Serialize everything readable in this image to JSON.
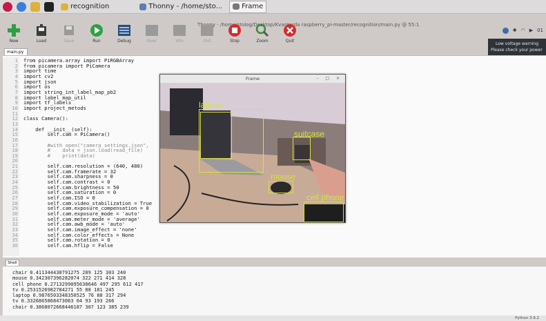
{
  "taskbar": {
    "items": [
      {
        "label": "recognition"
      },
      {
        "label": "Thonny - /home/sto..."
      },
      {
        "label": "Frame"
      }
    ]
  },
  "window": {
    "title": "Thonny - /home/stolog/Desktop/Kvantorda raspberry_pi-master/recognition/main.py @ 55:1"
  },
  "toolbar": {
    "buttons": [
      {
        "label": "New",
        "icon": "new-icon",
        "color": "#2ea043"
      },
      {
        "label": "Load",
        "icon": "load-icon",
        "color": "#333333"
      },
      {
        "label": "Save",
        "icon": "save-icon",
        "color": "#8a8a8a"
      },
      {
        "label": "Run",
        "icon": "run-icon",
        "color": "#2ea043"
      },
      {
        "label": "Debug",
        "icon": "debug-icon",
        "color": "#2b4a7a"
      },
      {
        "label": "Over",
        "icon": "step-over-icon",
        "color": "#8a8a8a"
      },
      {
        "label": "Into",
        "icon": "step-into-icon",
        "color": "#8a8a8a"
      },
      {
        "label": "Out",
        "icon": "step-out-icon",
        "color": "#8a8a8a"
      },
      {
        "label": "Stop",
        "icon": "stop-icon",
        "color": "#d92b2b"
      },
      {
        "label": "Zoom",
        "icon": "zoom-icon",
        "color": "#3a8a3a"
      },
      {
        "label": "Quit",
        "icon": "quit-icon",
        "color": "#d92b2b"
      }
    ]
  },
  "tray": {
    "clock": "01"
  },
  "warning": {
    "line1": "Low voltage warning",
    "line2": "Please check your power"
  },
  "editor": {
    "tab_label": "main.py",
    "lines": [
      {
        "n": "1",
        "text": "from picamera.array import PiRGBArray"
      },
      {
        "n": "2",
        "text": "from picamera import PiCamera"
      },
      {
        "n": "3",
        "text": "import time"
      },
      {
        "n": "4",
        "text": "import cv2"
      },
      {
        "n": "5",
        "text": "import json"
      },
      {
        "n": "6",
        "text": "import os"
      },
      {
        "n": "7",
        "text": "import string_int_label_map_pb2"
      },
      {
        "n": "8",
        "text": "import label_map_util"
      },
      {
        "n": "9",
        "text": "import tf_labels"
      },
      {
        "n": "10",
        "text": "import project_metods"
      },
      {
        "n": "11",
        "text": ""
      },
      {
        "n": "12",
        "text": "class Camera():"
      },
      {
        "n": "13",
        "text": ""
      },
      {
        "n": "14",
        "text": "    def __init__(self):"
      },
      {
        "n": "15",
        "text": "        self.cam = PiCamera()"
      },
      {
        "n": "16",
        "text": ""
      },
      {
        "n": "17",
        "text": "        #with open(\"camera_settings.json\","
      },
      {
        "n": "18",
        "text": "        #    data = json.load(read_file)"
      },
      {
        "n": "19",
        "text": "        #    print(data)"
      },
      {
        "n": "20",
        "text": ""
      },
      {
        "n": "21",
        "text": "        self.cam.resolution = (640, 480)"
      },
      {
        "n": "22",
        "text": "        self.cam.framerate = 32"
      },
      {
        "n": "23",
        "text": "        self.cam.sharpness = 0"
      },
      {
        "n": "24",
        "text": "        self.cam.contrast = 0"
      },
      {
        "n": "25",
        "text": "        self.cam.brightness = 50"
      },
      {
        "n": "26",
        "text": "        self.cam.saturation = 0"
      },
      {
        "n": "27",
        "text": "        self.cam.ISO = 0"
      },
      {
        "n": "28",
        "text": "        self.cam.video_stabilization = True"
      },
      {
        "n": "29",
        "text": "        self.cam.exposure_compensation = 0"
      },
      {
        "n": "30",
        "text": "        self.cam.exposure_mode = 'auto'"
      },
      {
        "n": "31",
        "text": "        self.cam.meter_mode = 'average'"
      },
      {
        "n": "32",
        "text": "        self.cam.awb_mode = 'auto'"
      },
      {
        "n": "33",
        "text": "        self.cam.image_effect = 'none'"
      },
      {
        "n": "34",
        "text": "        self.cam.color_effects = None"
      },
      {
        "n": "35",
        "text": "        self.cam.rotation = 0"
      },
      {
        "n": "36",
        "text": "        self.cam.hflip = False"
      }
    ]
  },
  "frame_window": {
    "title": "Frame",
    "detections": [
      {
        "label": "laptop"
      },
      {
        "label": "suitcase"
      },
      {
        "label": "mouse"
      },
      {
        "label": "cell phone"
      }
    ]
  },
  "shell": {
    "tab_label": "Shell",
    "lines": [
      "chair 0.411344438791275 289 125 303 240",
      "mouse 0.342307396282074 322 271 414 328",
      "cell phone 0.2713299095638646 497 295 612 417",
      "tv 0.2531526982784271 55 88 181 245",
      "laptop 0.9876503348350525 76 88 317 294",
      "tv 0.3326865868473063 64 93 193 266",
      "chair 0.3868072668446187 307 123 385 239"
    ]
  },
  "status": {
    "python_version": "Python 3.9.2"
  }
}
